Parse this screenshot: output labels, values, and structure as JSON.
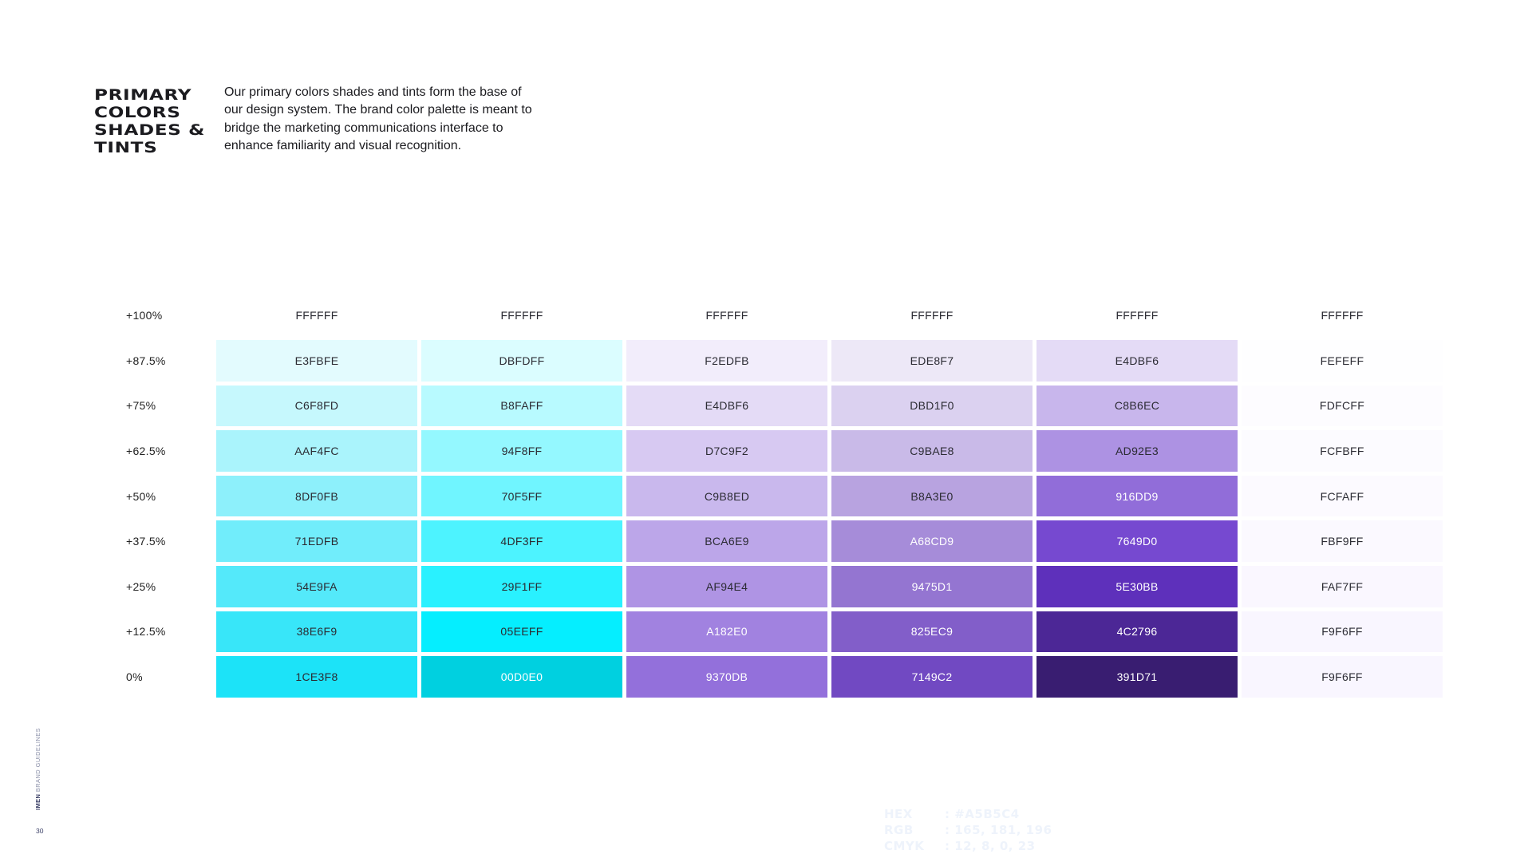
{
  "header": {
    "title_lines": [
      "PRIMARY",
      "COLORS",
      "SHADES &",
      "TINTS"
    ],
    "description": "Our primary colors shades and tints form the base of our design system. The brand color palette is meant to bridge the marketing communications interface to enhance familiarity and visual recognition."
  },
  "footer": {
    "brand": "IMEN",
    "section": "BRAND GUIDELINES",
    "page_number": "30"
  },
  "ghost_spec": [
    {
      "key": "HEX",
      "value": ": #A5B5C4"
    },
    {
      "key": "RGB",
      "value": ": 165, 181, 196"
    },
    {
      "key": "CMYK",
      "value": ": 12, 8, 0, 23"
    }
  ],
  "palette": {
    "rows": [
      {
        "label": "+100%",
        "cells": [
          "FFFFFF",
          "FFFFFF",
          "FFFFFF",
          "FFFFFF",
          "FFFFFF",
          "FFFFFF"
        ]
      },
      {
        "label": "+87.5%",
        "cells": [
          "E3FBFE",
          "DBFDFF",
          "F2EDFB",
          "EDE8F7",
          "E4DBF6",
          "FEFEFF"
        ]
      },
      {
        "label": "+75%",
        "cells": [
          "C6F8FD",
          "B8FAFF",
          "E4DBF6",
          "DBD1F0",
          "C8B6EC",
          "FDFCFF"
        ]
      },
      {
        "label": "+62.5%",
        "cells": [
          "AAF4FC",
          "94F8FF",
          "D7C9F2",
          "C9BAE8",
          "AD92E3",
          "FCFBFF"
        ]
      },
      {
        "label": "+50%",
        "cells": [
          "8DF0FB",
          "70F5FF",
          "C9B8ED",
          "B8A3E0",
          "916DD9",
          "FCFAFF"
        ]
      },
      {
        "label": "+37.5%",
        "cells": [
          "71EDFB",
          "4DF3FF",
          "BCA6E9",
          "A68CD9",
          "7649D0",
          "FBF9FF"
        ]
      },
      {
        "label": "+25%",
        "cells": [
          "54E9FA",
          "29F1FF",
          "AF94E4",
          "9475D1",
          "5E30BB",
          "FAF7FF"
        ]
      },
      {
        "label": "+12.5%",
        "cells": [
          "38E6F9",
          "05EEFF",
          "A182E0",
          "825EC9",
          "4C2796",
          "F9F6FF"
        ]
      },
      {
        "label": "0%",
        "cells": [
          "1CE3F8",
          "00D0E0",
          "9370DB",
          "7149C2",
          "391D71",
          "F9F6FF"
        ]
      }
    ],
    "light_text": [
      "00D0E0",
      "A68CD9",
      "9475D1",
      "7649D0",
      "5E30BB",
      "4C2796",
      "391D71",
      "A182E0",
      "825EC9",
      "9370DB",
      "7149C2",
      "916DD9"
    ]
  }
}
